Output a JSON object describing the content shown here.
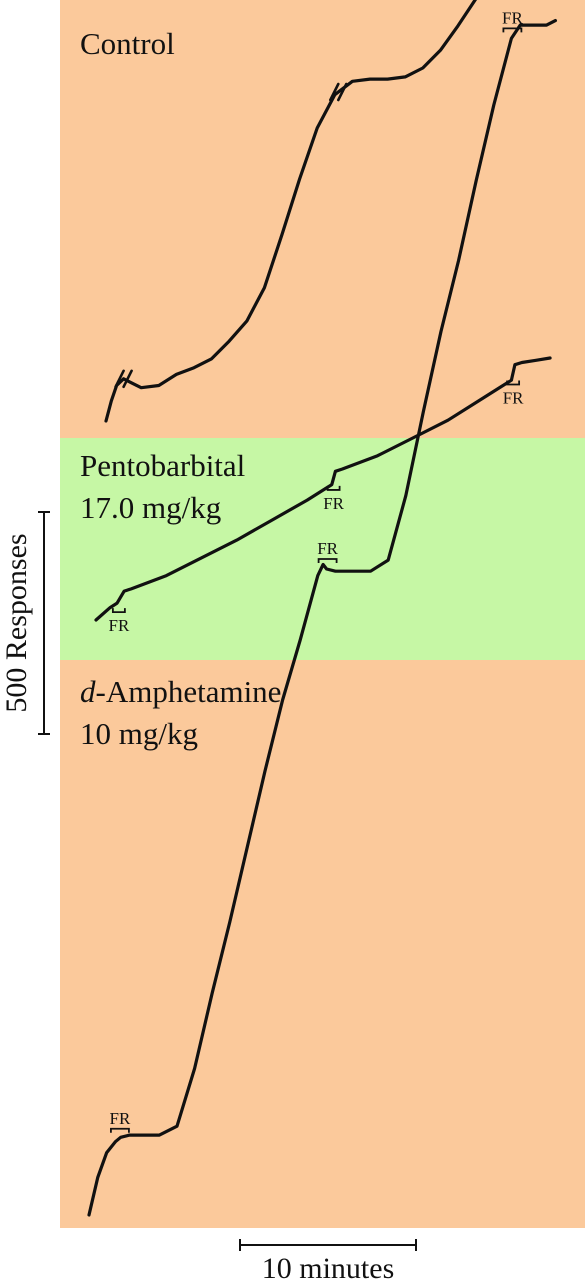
{
  "colors": {
    "control_bg": "#fbc99b",
    "pentobarbital_bg": "#c6f7a5",
    "amphetamine_bg": "#fbc99b",
    "trace": "#111111",
    "page_bg": "#ffffff"
  },
  "scale_bars": {
    "responses_label": "500 Responses",
    "responses_value": 500,
    "time_label": "10 minutes",
    "time_value_minutes": 10
  },
  "chart_data": [
    {
      "type": "line",
      "panel": "control",
      "title_lines": [
        "Control"
      ],
      "title_italic_prefix": "",
      "x_unit": "minutes",
      "y_unit": "responses",
      "x": [
        0,
        0.3,
        0.6,
        1.0,
        1.5,
        2.0,
        3.0,
        4.0,
        5.0,
        6.0,
        7.0,
        8.0,
        9.0,
        10.0,
        11.0,
        12.0,
        13.0,
        14.0,
        15.0,
        16.0,
        17.0,
        18.0,
        19.0,
        20.0,
        21.0,
        22.0,
        23.0,
        24.0,
        25.0,
        26.0,
        26.5,
        27.0,
        28.0
      ],
      "y": [
        0,
        45,
        80,
        95,
        85,
        75,
        80,
        105,
        120,
        140,
        180,
        225,
        300,
        420,
        545,
        660,
        735,
        765,
        770,
        770,
        775,
        795,
        835,
        890,
        950,
        1025,
        1100,
        1185,
        1255,
        1300,
        1310,
        1310,
        1310
      ],
      "fr_markers_x": [
        1.0,
        13.2,
        25.2
      ],
      "fr_label": ""
    },
    {
      "type": "line",
      "panel": "pentobarbital",
      "title_lines": [
        "Pentobarbital",
        "17.0 mg/kg"
      ],
      "title_italic_prefix": "",
      "x_unit": "minutes",
      "y_unit": "responses",
      "x": [
        0,
        0.8,
        1.2,
        1.6,
        2.0,
        4.0,
        6.0,
        8.0,
        10.0,
        12.0,
        13.0,
        13.4,
        13.6,
        14.0,
        16.0,
        18.0,
        20.0,
        22.0,
        23.0,
        23.6,
        23.8,
        24.2,
        25.0,
        25.8
      ],
      "y": [
        0,
        28,
        38,
        65,
        70,
        100,
        140,
        180,
        225,
        270,
        295,
        305,
        335,
        340,
        370,
        410,
        450,
        500,
        525,
        540,
        575,
        580,
        585,
        590
      ],
      "fr_markers_x": [
        1.3,
        13.5,
        23.7
      ],
      "fr_label": "FR"
    },
    {
      "type": "line",
      "panel": "amphetamine",
      "title_lines": [
        "-Amphetamine",
        "10 mg/kg"
      ],
      "title_italic_prefix": "d",
      "x_unit": "minutes",
      "y_unit": "responses",
      "x": [
        0,
        0.5,
        1.0,
        1.5,
        1.8,
        2.3,
        3.0,
        4.0,
        5.0,
        6.0,
        7.0,
        8.0,
        9.0,
        10.0,
        11.0,
        12.0,
        13.0,
        13.3,
        13.5,
        14.0,
        15.0,
        16.0,
        17.0,
        18.0,
        19.0,
        20.0,
        21.0,
        22.0,
        23.0,
        24.0,
        24.5,
        25.0,
        26.0,
        26.5
      ],
      "y": [
        0,
        85,
        140,
        165,
        175,
        180,
        180,
        180,
        200,
        330,
        500,
        660,
        830,
        1000,
        1160,
        1295,
        1440,
        1465,
        1455,
        1450,
        1450,
        1450,
        1475,
        1620,
        1810,
        1990,
        2150,
        2330,
        2500,
        2650,
        2680,
        2680,
        2680,
        2690
      ],
      "fr_markers_x": [
        1.7,
        13.5,
        24.0
      ],
      "fr_label": "FR"
    }
  ]
}
